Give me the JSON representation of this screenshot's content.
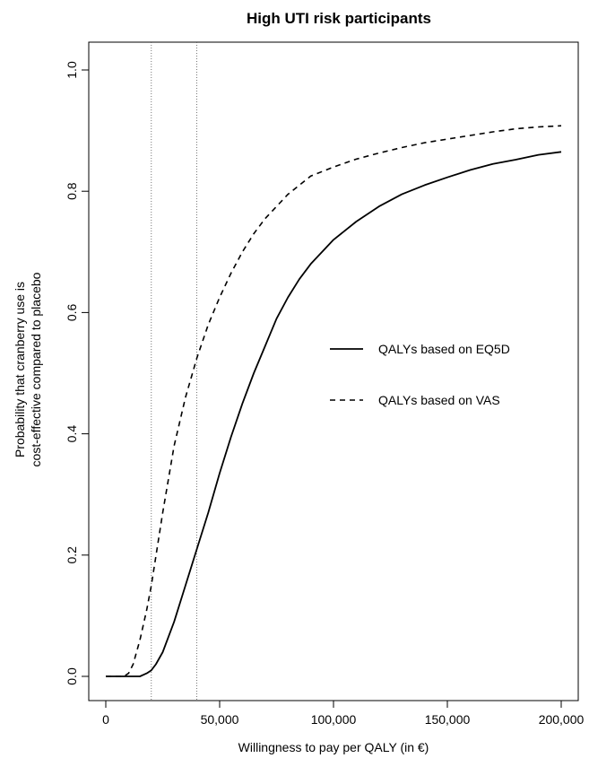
{
  "chart_data": {
    "type": "line",
    "title": "High UTI risk participants",
    "xlabel": "Willingness to pay per QALY (in €)",
    "ylabel_lines": [
      "Probability that cranberry use is",
      "cost-effective compared to placebo"
    ],
    "xlim": [
      0,
      200000
    ],
    "ylim": [
      0,
      1.0
    ],
    "x_ticks": [
      0,
      50000,
      100000,
      150000,
      200000
    ],
    "x_tick_labels": [
      "0",
      "50,000",
      "100,000",
      "150,000",
      "200,000"
    ],
    "y_ticks": [
      0,
      0.2,
      0.4,
      0.6,
      0.8,
      1.0
    ],
    "y_tick_labels": [
      "0.0",
      "0.2",
      "0.4",
      "0.6",
      "0.8",
      "1.0"
    ],
    "reference_lines_x": [
      20000,
      40000
    ],
    "legend_position": "right-middle",
    "grid": false,
    "series": [
      {
        "name": "QALYs based on EQ5D",
        "line_style": "solid",
        "x": [
          0,
          10000,
          15000,
          18000,
          20000,
          22000,
          25000,
          30000,
          35000,
          40000,
          45000,
          50000,
          55000,
          60000,
          65000,
          70000,
          75000,
          80000,
          85000,
          90000,
          95000,
          100000,
          110000,
          120000,
          130000,
          140000,
          150000,
          160000,
          170000,
          180000,
          190000,
          200000
        ],
        "y": [
          0,
          0,
          0,
          0.005,
          0.01,
          0.02,
          0.04,
          0.09,
          0.15,
          0.21,
          0.27,
          0.335,
          0.395,
          0.45,
          0.5,
          0.545,
          0.59,
          0.625,
          0.655,
          0.68,
          0.7,
          0.72,
          0.75,
          0.775,
          0.795,
          0.81,
          0.823,
          0.835,
          0.845,
          0.852,
          0.86,
          0.865
        ]
      },
      {
        "name": "QALYs based on VAS",
        "line_style": "dashed",
        "x": [
          0,
          8000,
          10000,
          12000,
          15000,
          18000,
          20000,
          25000,
          30000,
          35000,
          40000,
          45000,
          50000,
          55000,
          60000,
          65000,
          70000,
          75000,
          80000,
          85000,
          90000,
          100000,
          110000,
          120000,
          130000,
          140000,
          150000,
          160000,
          170000,
          180000,
          190000,
          200000
        ],
        "y": [
          0,
          0,
          0.005,
          0.02,
          0.06,
          0.11,
          0.15,
          0.27,
          0.38,
          0.46,
          0.525,
          0.58,
          0.625,
          0.665,
          0.7,
          0.73,
          0.755,
          0.775,
          0.795,
          0.81,
          0.825,
          0.84,
          0.853,
          0.863,
          0.872,
          0.88,
          0.886,
          0.892,
          0.898,
          0.903,
          0.906,
          0.908
        ]
      }
    ]
  }
}
